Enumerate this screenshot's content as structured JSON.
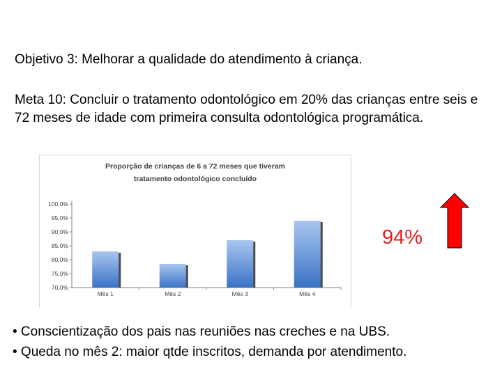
{
  "objective": "Objetivo 3: Melhorar a qualidade do atendimento à criança.",
  "goal": "Meta 10: Concluir o tratamento odontológico em 20% das crianças entre seis e 72 meses de idade com primeira consulta odontológica programática.",
  "highlight_value": "94%",
  "bullets": [
    "• Conscientização dos pais nas reuniões nas creches e na UBS.",
    "• Queda no mês 2: maior qtde inscritos, demanda por atendimento."
  ],
  "colors": {
    "bar_top": "#a9c6ee",
    "bar_bottom": "#3a73c7",
    "value_text": "#e02020",
    "arrow": "#ff0000"
  },
  "chart_data": {
    "type": "bar",
    "title_lines": [
      "Proporção de crianças de 6 a 72 meses  que tiveram",
      "tratamento odontológico concluído"
    ],
    "categories": [
      "Mês 1",
      "Mês 2",
      "Mês 3",
      "Mês 4"
    ],
    "values": [
      83.0,
      78.5,
      87.0,
      94.0
    ],
    "ylim": [
      70,
      100
    ],
    "yticks": [
      "70,0%",
      "75,0%",
      "80,0%",
      "85,0%",
      "90,0%",
      "95,0%",
      "100,0%"
    ],
    "grid": false,
    "legend": "none"
  }
}
